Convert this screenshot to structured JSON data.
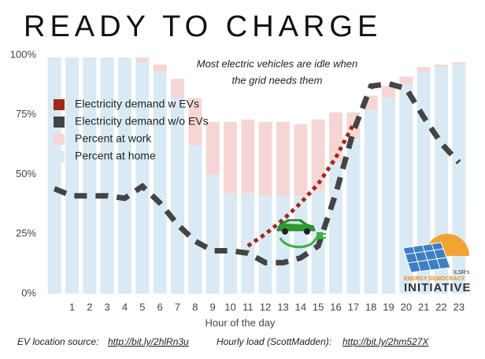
{
  "chart_data": {
    "type": "combo",
    "title": "READY TO CHARGE",
    "annotation": [
      "Most electric vehicles are idle when",
      "the grid needs them"
    ],
    "x_label": "Hour of the day",
    "categories": [
      null,
      "1",
      "2",
      "3",
      "4",
      "5",
      "6",
      "7",
      "8",
      "9",
      "10",
      "11",
      "12",
      "13",
      "14",
      "15",
      "16",
      "17",
      "18",
      "19",
      "20",
      "21",
      "22",
      "23"
    ],
    "ylim": [
      0,
      100
    ],
    "yticks": [
      {
        "value": 0,
        "label": "0%"
      },
      {
        "value": 25,
        "label": "25%"
      },
      {
        "value": 50,
        "label": "50%"
      },
      {
        "value": 75,
        "label": "75%"
      },
      {
        "value": 100,
        "label": "100%"
      }
    ],
    "legend": "upper left",
    "series": [
      {
        "name": "Electricity demand w EVs",
        "type": "line",
        "color": "#a3281a",
        "dash": "dotted",
        "values": [
          null,
          null,
          null,
          null,
          null,
          null,
          null,
          null,
          null,
          null,
          null,
          20,
          25,
          31,
          38,
          46,
          57,
          71,
          null,
          null,
          null,
          null,
          null,
          null
        ]
      },
      {
        "name": "Electricity demand w/o EVs",
        "type": "line",
        "color": "#444444",
        "dash": "dashed",
        "values": [
          44,
          41,
          41,
          41,
          40,
          45,
          38,
          29,
          22,
          18,
          18,
          17,
          13,
          13,
          15,
          20,
          42,
          68,
          87,
          88,
          86,
          74,
          63,
          55
        ]
      },
      {
        "name": "Percent at work",
        "type": "bar",
        "color": "#f6d6d4",
        "values": [
          0,
          0,
          0,
          0,
          0,
          2,
          3,
          8,
          20,
          22,
          30,
          31,
          31,
          31,
          30,
          30,
          21,
          11,
          6,
          5,
          3,
          2,
          1,
          1
        ]
      },
      {
        "name": "Percent at home",
        "type": "bar",
        "color": "#d9eaf5",
        "values": [
          99,
          99,
          99,
          99,
          99,
          97,
          93,
          82,
          62,
          50,
          42,
          42,
          41,
          41,
          41,
          43,
          55,
          65,
          77,
          82,
          88,
          93,
          95,
          96
        ]
      }
    ],
    "sources": [
      "EV location source:",
      "http://bit.ly/2hlRn3u",
      "Hourly load (ScottMadden):",
      "http://bit.ly/2hm527X"
    ],
    "logo": [
      "ILSR's",
      "ENERGY DEMOCRACY",
      "INITIATIVE"
    ]
  }
}
